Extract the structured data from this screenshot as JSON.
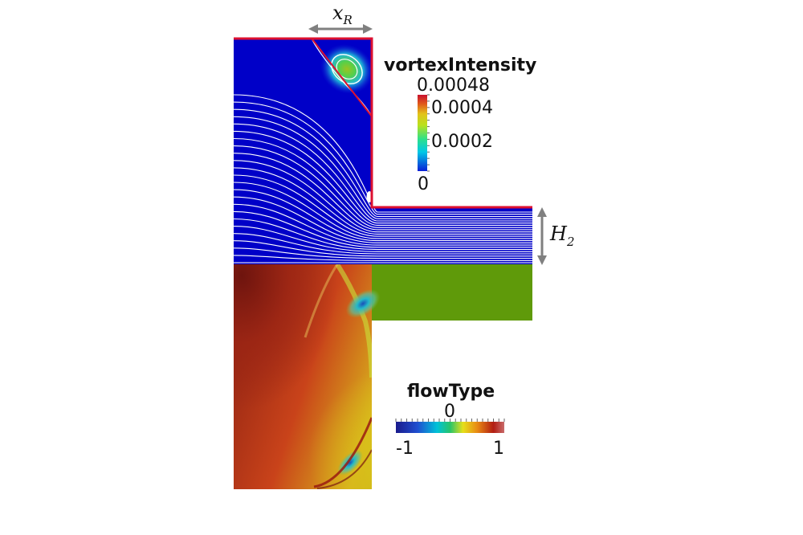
{
  "annotations": {
    "x_r": {
      "main": "x",
      "sub": "R"
    },
    "h_2": {
      "main": "H",
      "sub": "2"
    }
  },
  "legends": {
    "vortex": {
      "title": "vortexIntensity",
      "max_label": "0.00048",
      "ticks": [
        "0.0004",
        "0.0002",
        "0"
      ],
      "tick_values": [
        0.0004,
        0.0002,
        0
      ],
      "range": [
        0,
        0.00048
      ],
      "colormap": [
        "#0b1fd6",
        "#00c8e6",
        "#2ee08a",
        "#b9e11d",
        "#e3c21a",
        "#e0591a",
        "#c8102e"
      ]
    },
    "flow": {
      "title": "flowType",
      "center_label": "0",
      "min_label": "-1",
      "max_label": "1",
      "range": [
        -1,
        1
      ],
      "colormap": [
        "#1a1a8c",
        "#1f4fd0",
        "#00c2d8",
        "#28c46a",
        "#e6df1a",
        "#e88a14",
        "#b21d12",
        "#c86b6b"
      ]
    }
  },
  "colors": {
    "domain_blue": "#0000c8",
    "wall_red": "#dd1030",
    "streamline": "#ffffff",
    "arrow": "#808080",
    "flow_green": "#5f9a0a",
    "flow_dark_red": "#7a1a12"
  }
}
